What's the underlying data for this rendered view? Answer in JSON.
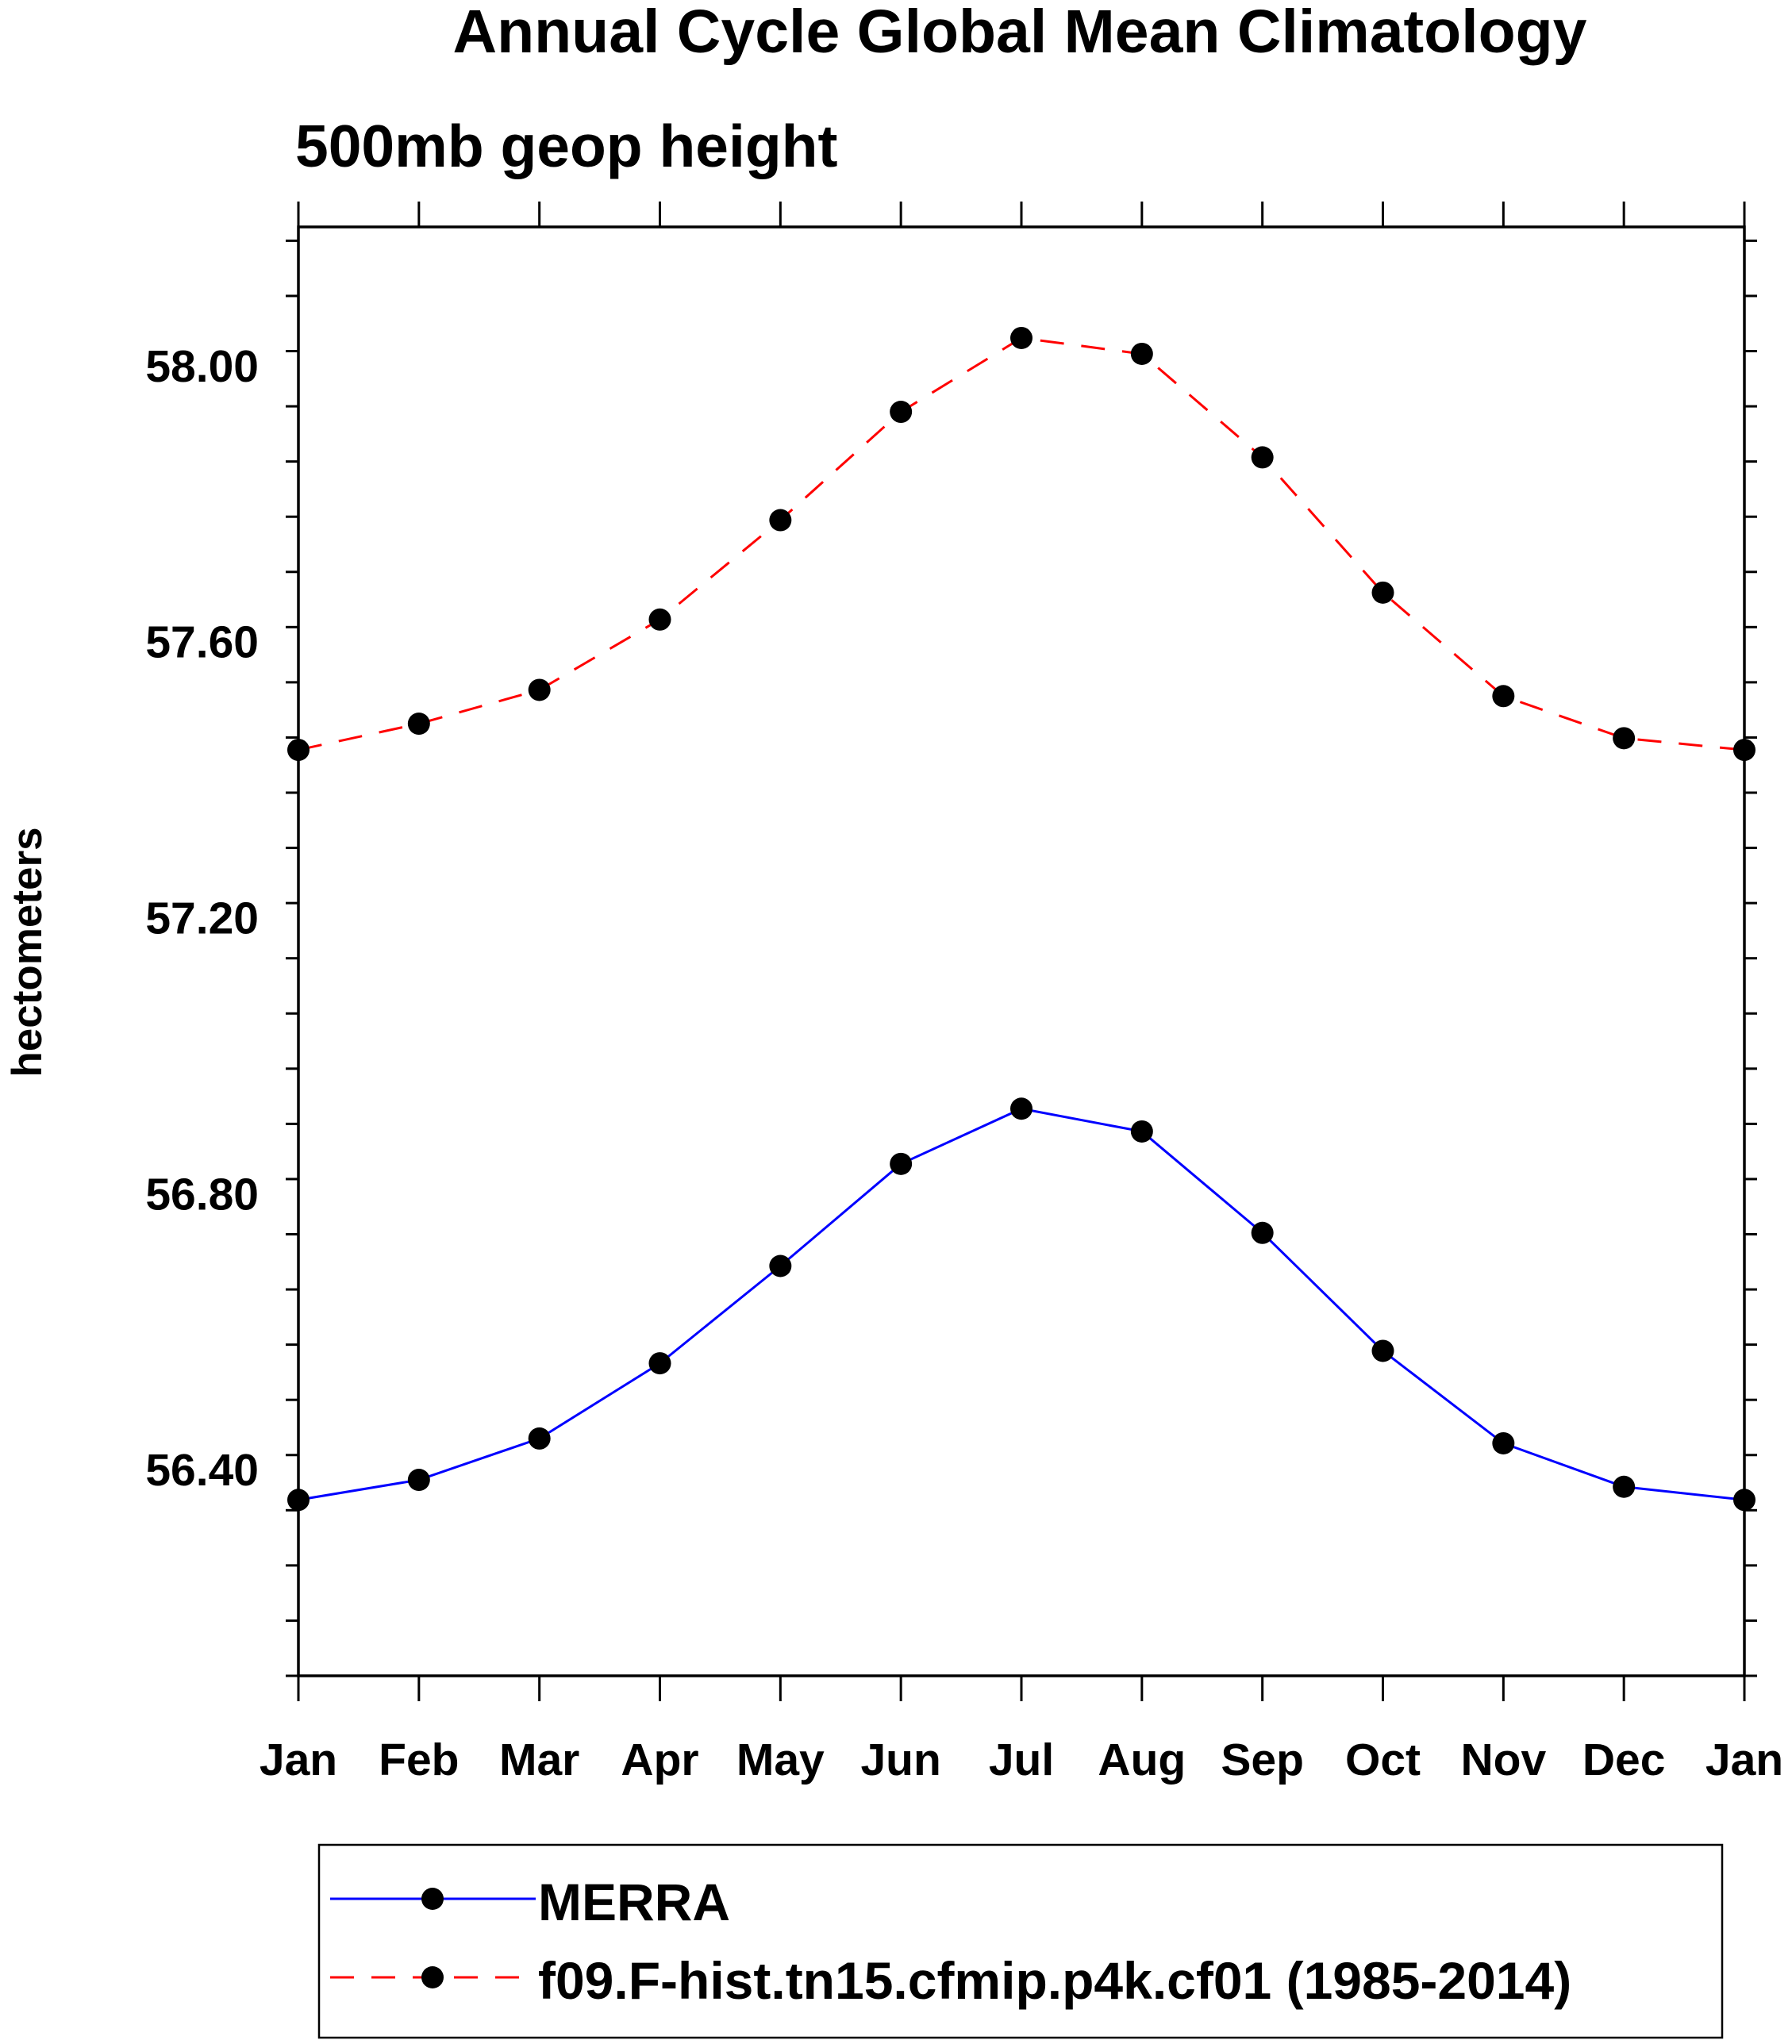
{
  "chart_data": {
    "type": "line",
    "title": "Annual Cycle Global Mean Climatology",
    "subtitle": "500mb geop height",
    "xlabel": "",
    "ylabel": "hectometers",
    "categories": [
      "Jan",
      "Feb",
      "Mar",
      "Apr",
      "May",
      "Jun",
      "Jul",
      "Aug",
      "Sep",
      "Oct",
      "Nov",
      "Dec",
      "Jan"
    ],
    "ylim": [
      56.1,
      58.2
    ],
    "yticks": [
      56.4,
      56.8,
      57.2,
      57.6,
      58.0
    ],
    "ytick_labels": [
      "56.40",
      "56.80",
      "57.20",
      "57.60",
      "58.00"
    ],
    "grid": false,
    "legend_position": "bottom",
    "series": [
      {
        "name": "MERRA",
        "color": "#0000ff",
        "dash": "solid",
        "values": [
          56.355,
          56.384,
          56.444,
          56.553,
          56.694,
          56.842,
          56.922,
          56.889,
          56.742,
          56.571,
          56.437,
          56.374,
          56.355
        ]
      },
      {
        "name": "f09.F-hist.tn15.cfmip.p4k.cf01 (1985-2014)",
        "color": "#ff0000",
        "dash": "dashed",
        "values": [
          57.442,
          57.48,
          57.529,
          57.631,
          57.775,
          57.932,
          58.039,
          58.016,
          57.866,
          57.67,
          57.52,
          57.459,
          57.442
        ]
      }
    ]
  }
}
